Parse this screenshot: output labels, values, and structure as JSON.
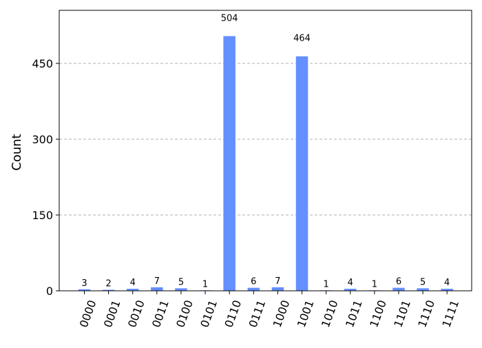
{
  "chart_data": {
    "type": "bar",
    "categories": [
      "0000",
      "0001",
      "0010",
      "0011",
      "0100",
      "0101",
      "0110",
      "0111",
      "1000",
      "1001",
      "1010",
      "1011",
      "1100",
      "1101",
      "1110",
      "1111"
    ],
    "values": [
      3,
      2,
      4,
      7,
      5,
      1,
      504,
      6,
      7,
      464,
      1,
      4,
      1,
      6,
      5,
      4
    ],
    "xlabel": "",
    "ylabel": "Count",
    "ylim": [
      0,
      555
    ],
    "yticks": [
      0,
      150,
      300,
      450
    ],
    "grid": "horizontal dashed",
    "bar_color": "#648fff",
    "category_label_rotation": "-70deg"
  }
}
